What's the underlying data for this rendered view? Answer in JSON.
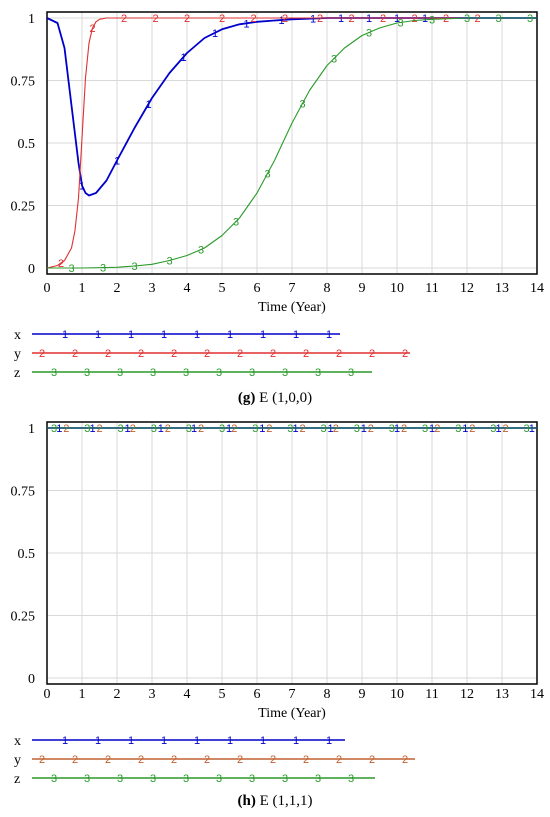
{
  "chart_data": [
    {
      "type": "line",
      "caption_bold": "(g)",
      "caption_text": "E (1,0,0)",
      "xlabel": "Time (Year)",
      "xlim": [
        0,
        14
      ],
      "ylim": [
        0,
        1
      ],
      "x_ticks": [
        "0",
        "1",
        "2",
        "3",
        "4",
        "5",
        "6",
        "7",
        "8",
        "9",
        "10",
        "11",
        "12",
        "13",
        "14"
      ],
      "y_ticks": [
        "0",
        "0.25",
        "0.5",
        "0.75",
        "1"
      ],
      "grid": true,
      "legend_placement": "bottom",
      "series": [
        {
          "name": "x",
          "marker": "1",
          "color": "#0000cc",
          "x": [
            0,
            0.3,
            0.5,
            0.7,
            0.9,
            1.0,
            1.1,
            1.2,
            1.4,
            1.7,
            2.0,
            2.5,
            3.0,
            3.5,
            4.0,
            4.5,
            5.0,
            5.5,
            6.0,
            6.5,
            7.0,
            8.0,
            10.0,
            14.0
          ],
          "y": [
            1.0,
            0.98,
            0.88,
            0.65,
            0.42,
            0.33,
            0.3,
            0.29,
            0.3,
            0.35,
            0.43,
            0.56,
            0.68,
            0.78,
            0.86,
            0.92,
            0.955,
            0.975,
            0.985,
            0.99,
            0.995,
            1.0,
            1.0,
            1.0
          ],
          "marker_x": [
            1.0,
            2.0,
            2.9,
            3.9,
            4.8,
            5.7,
            6.7,
            7.6,
            8.4,
            9.2,
            10.0,
            10.8
          ]
        },
        {
          "name": "y",
          "marker": "2",
          "color": "#e03030",
          "x": [
            0,
            0.3,
            0.5,
            0.7,
            0.8,
            0.9,
            1.0,
            1.1,
            1.2,
            1.3,
            1.4,
            1.5,
            1.7,
            2.0,
            14.0
          ],
          "y": [
            0.0,
            0.01,
            0.03,
            0.08,
            0.15,
            0.28,
            0.52,
            0.76,
            0.9,
            0.96,
            0.985,
            0.995,
            1.0,
            1.0,
            1.0
          ],
          "marker_x": [
            0.4,
            1.3,
            2.2,
            3.1,
            4.0,
            5.0,
            5.9,
            6.8,
            7.8,
            8.7,
            9.6,
            10.5,
            11.4,
            12.3
          ]
        },
        {
          "name": "z",
          "marker": "3",
          "color": "#2a9a2a",
          "x": [
            0,
            1.0,
            2.0,
            2.5,
            3.0,
            3.5,
            4.0,
            4.5,
            5.0,
            5.5,
            6.0,
            6.5,
            7.0,
            7.5,
            8.0,
            8.5,
            9.0,
            9.5,
            10.0,
            10.5,
            11.0,
            12.0,
            14.0
          ],
          "y": [
            0.0,
            0.0,
            0.003,
            0.008,
            0.015,
            0.03,
            0.05,
            0.08,
            0.13,
            0.2,
            0.3,
            0.43,
            0.58,
            0.71,
            0.81,
            0.88,
            0.93,
            0.96,
            0.98,
            0.99,
            0.995,
            1.0,
            1.0
          ],
          "marker_x": [
            0.7,
            1.6,
            2.5,
            3.5,
            4.4,
            5.4,
            6.3,
            7.3,
            8.2,
            9.2,
            10.1,
            11.0,
            12.0,
            12.9,
            13.8
          ]
        }
      ]
    },
    {
      "type": "line",
      "caption_bold": "(h)",
      "caption_text": "E (1,1,1)",
      "xlabel": "Time (Year)",
      "xlim": [
        0,
        14
      ],
      "ylim": [
        0,
        1
      ],
      "x_ticks": [
        "0",
        "1",
        "2",
        "3",
        "4",
        "5",
        "6",
        "7",
        "8",
        "9",
        "10",
        "11",
        "12",
        "13",
        "14"
      ],
      "y_ticks": [
        "0",
        "0.25",
        "0.5",
        "0.75",
        "1"
      ],
      "grid": true,
      "legend_placement": "bottom",
      "series": [
        {
          "name": "x",
          "marker": "1",
          "color": "#0000cc",
          "x": [
            0,
            14
          ],
          "y": [
            1,
            1
          ],
          "marker_x": [
            0.35,
            1.3,
            2.3,
            3.25,
            4.2,
            5.2,
            6.15,
            7.1,
            8.1,
            9.05,
            10.0,
            11.0,
            11.95,
            12.9,
            13.85
          ]
        },
        {
          "name": "y",
          "marker": "2",
          "color": "#c06030",
          "x": [
            0,
            14
          ],
          "y": [
            1,
            1
          ],
          "marker_x": [
            0.55,
            1.5,
            2.45,
            3.45,
            4.4,
            5.35,
            6.35,
            7.3,
            8.25,
            9.25,
            10.2,
            11.15,
            12.15,
            13.1
          ]
        },
        {
          "name": "z",
          "marker": "3",
          "color": "#2a9a2a",
          "x": [
            0,
            14
          ],
          "y": [
            1,
            1
          ],
          "marker_x": [
            0.2,
            1.15,
            2.1,
            3.05,
            4.05,
            5.0,
            5.95,
            6.95,
            7.9,
            8.85,
            9.85,
            10.8,
            11.75,
            12.75,
            13.7
          ]
        }
      ]
    }
  ]
}
